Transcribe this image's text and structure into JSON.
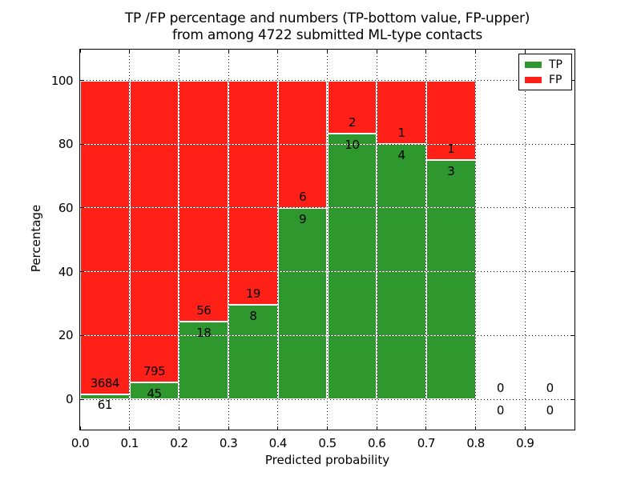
{
  "chart_data": {
    "type": "bar",
    "subtype": "stacked-percentage-histogram",
    "title_line1": "TP /FP percentage and numbers (TP-bottom value, FP-upper)",
    "title_line2": "from among 4722 submitted ML-type contacts",
    "xlabel": "Predicted probability",
    "ylabel": "Percentage",
    "total_contacts": "4722",
    "x_tick_labels": [
      "0.0",
      "0.1",
      "0.2",
      "0.3",
      "0.4",
      "0.5",
      "0.6",
      "0.7",
      "0.8",
      "0.9"
    ],
    "x_tick_values": [
      0.0,
      0.1,
      0.2,
      0.3,
      0.4,
      0.5,
      0.6,
      0.7,
      0.8,
      0.9
    ],
    "y_tick_labels": [
      "0",
      "20",
      "40",
      "60",
      "80",
      "100"
    ],
    "y_tick_values": [
      0,
      20,
      40,
      60,
      80,
      100
    ],
    "x_range": [
      0.0,
      1.0
    ],
    "y_range_pct": [
      -10,
      110
    ],
    "grid": "dotted-on",
    "legend": {
      "position": "upper-right",
      "entries": [
        {
          "label": "TP",
          "color": "#2e972e"
        },
        {
          "label": "FP",
          "color": "#ff2018"
        }
      ]
    },
    "bins": [
      {
        "x0": 0.0,
        "x1": 0.1,
        "tp": 61,
        "fp": 3684,
        "tp_pct": 1.63
      },
      {
        "x0": 0.1,
        "x1": 0.2,
        "tp": 45,
        "fp": 795,
        "tp_pct": 5.36
      },
      {
        "x0": 0.2,
        "x1": 0.3,
        "tp": 18,
        "fp": 56,
        "tp_pct": 24.32
      },
      {
        "x0": 0.3,
        "x1": 0.4,
        "tp": 8,
        "fp": 19,
        "tp_pct": 29.63
      },
      {
        "x0": 0.4,
        "x1": 0.5,
        "tp": 9,
        "fp": 6,
        "tp_pct": 60.0
      },
      {
        "x0": 0.5,
        "x1": 0.6,
        "tp": 10,
        "fp": 2,
        "tp_pct": 83.33
      },
      {
        "x0": 0.6,
        "x1": 0.7,
        "tp": 4,
        "fp": 1,
        "tp_pct": 80.0
      },
      {
        "x0": 0.7,
        "x1": 0.8,
        "tp": 3,
        "fp": 1,
        "tp_pct": 75.0
      },
      {
        "x0": 0.8,
        "x1": 0.9,
        "tp": 0,
        "fp": 0,
        "tp_pct": 0
      },
      {
        "x0": 0.9,
        "x1": 1.0,
        "tp": 0,
        "fp": 0,
        "tp_pct": 0
      }
    ],
    "colors": {
      "tp": "#2e972e",
      "fp": "#ff2018",
      "bar_edge": "#ffffff",
      "grid": "#000000",
      "text": "#000000",
      "background": "#ffffff"
    }
  }
}
